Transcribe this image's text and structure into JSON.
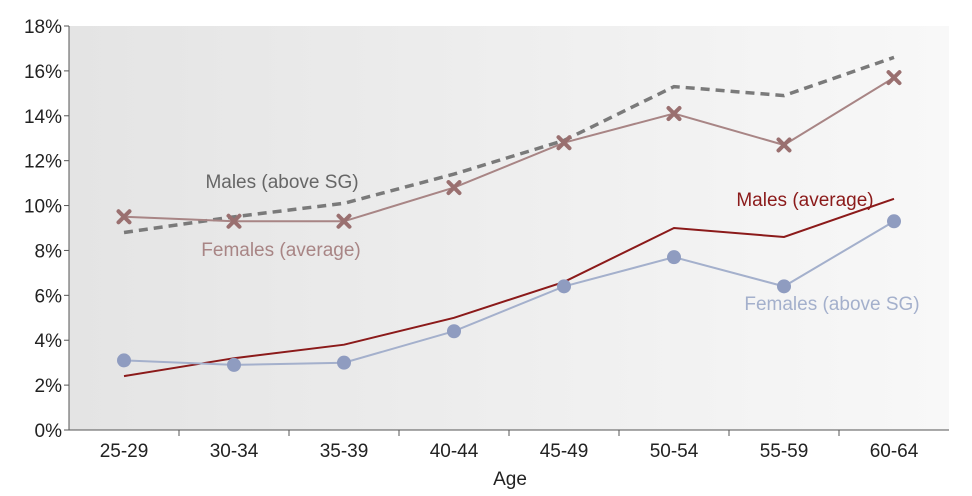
{
  "chart_data": {
    "type": "line",
    "title": "",
    "xlabel": "Age",
    "ylabel": "",
    "categories": [
      "25-29",
      "30-34",
      "35-39",
      "40-44",
      "45-49",
      "50-54",
      "55-59",
      "60-64"
    ],
    "y_ticks": [
      "0%",
      "2%",
      "4%",
      "6%",
      "8%",
      "10%",
      "12%",
      "14%",
      "16%",
      "18%"
    ],
    "ylim": [
      0,
      18
    ],
    "grid": false,
    "legend": "none (series labelled directly on the plot)",
    "background": "light grey gradient, darker on the left",
    "series": [
      {
        "name": "Males (above SG)",
        "values": [
          8.8,
          9.5,
          10.1,
          11.4,
          12.9,
          15.3,
          14.9,
          16.6
        ],
        "color": "#7a7a7a",
        "line_style": "dashed",
        "marker": "none"
      },
      {
        "name": "Females (average)",
        "values": [
          9.5,
          9.3,
          9.3,
          10.8,
          12.8,
          14.1,
          12.7,
          15.7
        ],
        "color": "#a88585",
        "marker_color": "#9a7070",
        "line_style": "solid",
        "marker": "x"
      },
      {
        "name": "Males (average)",
        "values": [
          2.4,
          3.2,
          3.8,
          5.0,
          6.6,
          9.0,
          8.6,
          10.3
        ],
        "color": "#8b1a1a",
        "line_style": "solid",
        "marker": "none"
      },
      {
        "name": "Females (above SG)",
        "values": [
          3.1,
          2.9,
          3.0,
          4.4,
          6.4,
          7.7,
          6.4,
          9.3
        ],
        "color": "#a4b0cc",
        "marker_color": "#8f9cc0",
        "line_style": "solid",
        "marker": "circle"
      }
    ]
  }
}
